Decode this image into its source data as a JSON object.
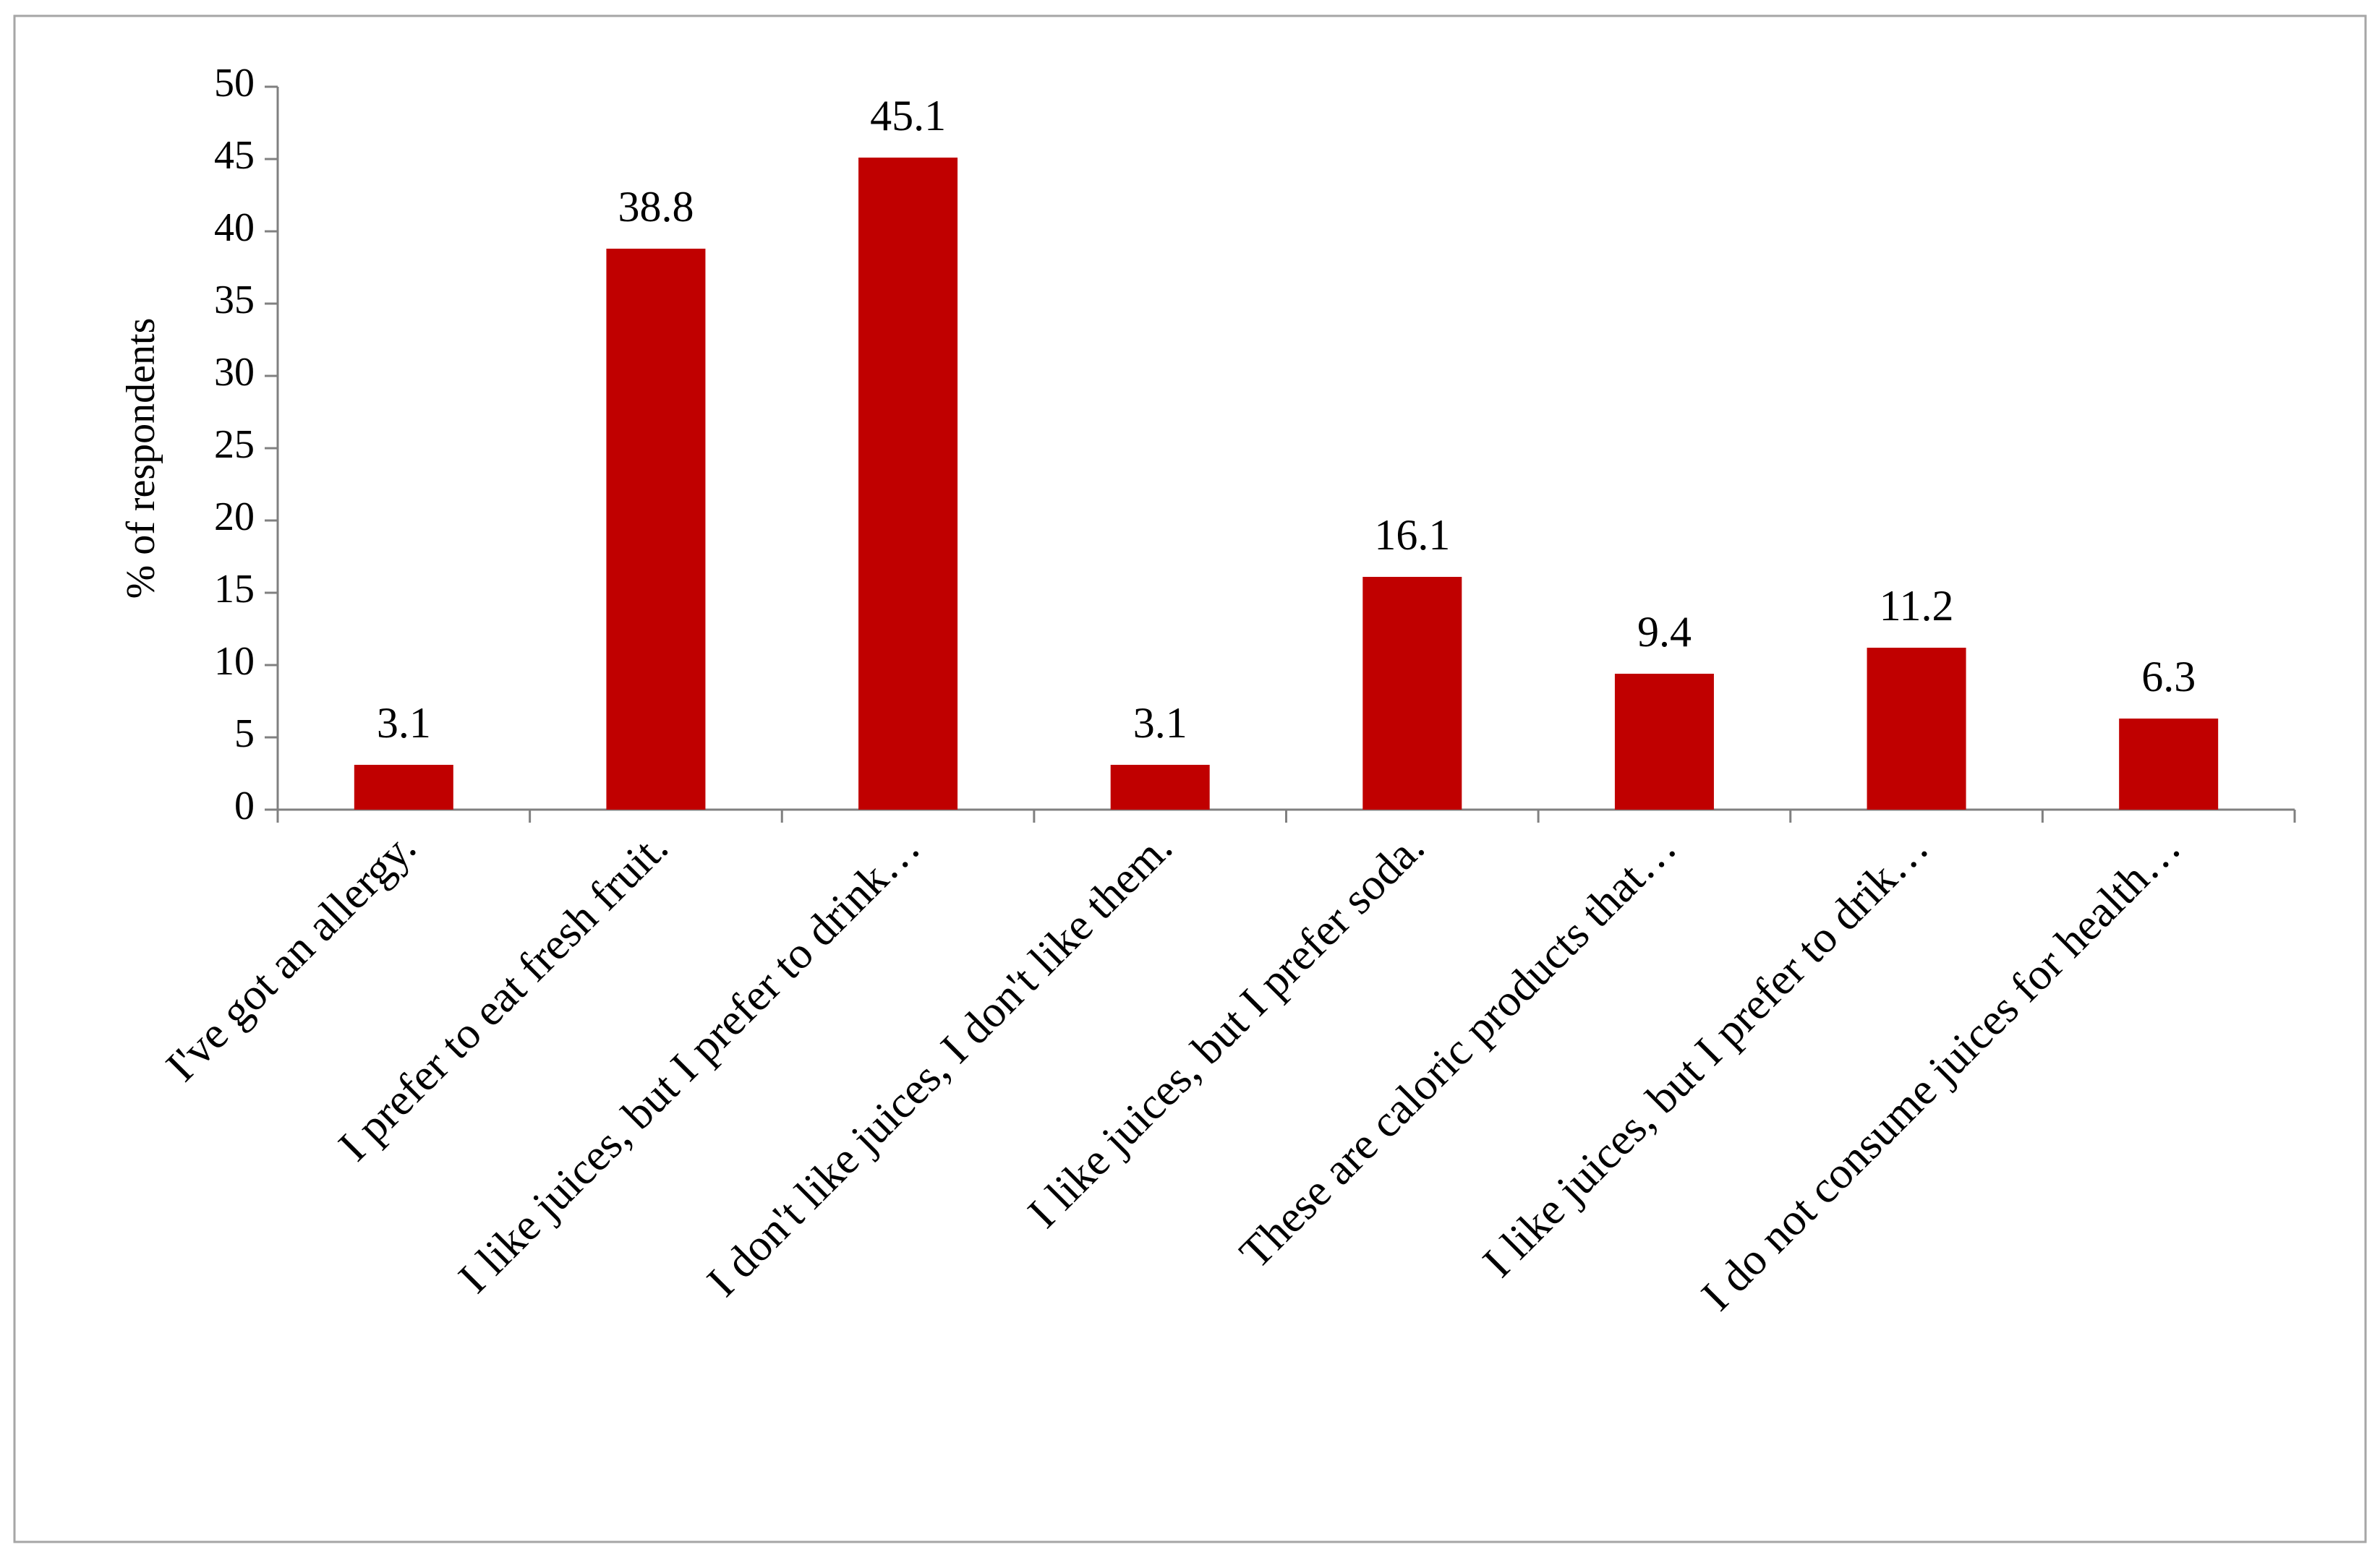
{
  "chart_data": {
    "type": "bar",
    "title": "",
    "xlabel": "",
    "ylabel": "% of respondents",
    "ylim": [
      0,
      50
    ],
    "yticks": [
      0,
      5,
      10,
      15,
      20,
      25,
      30,
      35,
      40,
      45,
      50
    ],
    "categories": [
      "I've got an allergy.",
      "I prefer to eat fresh fruit.",
      "I like juices, but I prefer to drink…",
      "I don't like juices, I don't like them.",
      "I like juices, but I prefer soda.",
      "These are caloric products that…",
      "I like juices, but I prefer to drik…",
      "I do not consume juices for health…"
    ],
    "values": [
      3.1,
      38.8,
      45.1,
      3.1,
      16.1,
      9.4,
      11.2,
      6.3
    ],
    "data_labels": [
      "3.1",
      "38.8",
      "45.1",
      "3.1",
      "16.1",
      "9.4",
      "11.2",
      "6.3"
    ],
    "bar_color": "#c00000",
    "grid": false,
    "legend": "none"
  }
}
